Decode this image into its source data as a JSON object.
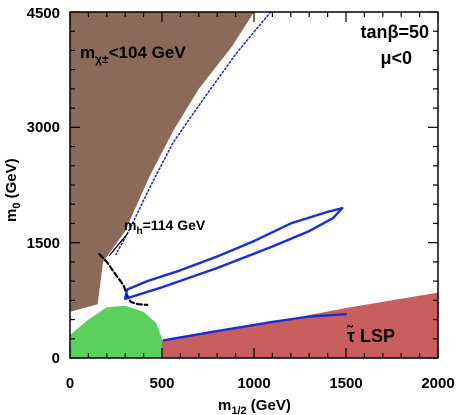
{
  "chart_data": {
    "type": "area",
    "xlabel": {
      "main": "m",
      "sub": "1/2",
      "unit": " (GeV)"
    },
    "ylabel": {
      "main": "m",
      "sub": "0",
      "unit": " (GeV)"
    },
    "xlim": [
      0,
      2000
    ],
    "ylim": [
      0,
      4500
    ],
    "xticks": [
      "0",
      "500",
      "1000",
      "1500",
      "2000"
    ],
    "yticks": [
      "0",
      "1500",
      "3000",
      "4500"
    ],
    "grid": false,
    "legend": "none",
    "params": {
      "line1": "tanβ=50",
      "line2": "μ<0"
    },
    "regions": [
      {
        "name": "chargino",
        "label": {
          "main": "m",
          "sub": "χ±",
          "rest": "<104 GeV"
        },
        "color": "#8b6a5a",
        "boundary": [
          [
            0,
            4500
          ],
          [
            1000,
            4500
          ],
          [
            880,
            4050
          ],
          [
            700,
            3500
          ],
          [
            560,
            2950
          ],
          [
            430,
            2350
          ],
          [
            300,
            1650
          ],
          [
            180,
            1250
          ],
          [
            150,
            700
          ],
          [
            0,
            600
          ]
        ]
      },
      {
        "name": "stau-lsp",
        "label": {
          "main": "τ̃",
          "rest": " LSP"
        },
        "color": "#c95e5e",
        "boundary": [
          [
            500,
            0
          ],
          [
            2000,
            0
          ],
          [
            2000,
            850
          ],
          [
            1500,
            650
          ],
          [
            1000,
            420
          ],
          [
            500,
            230
          ]
        ]
      },
      {
        "name": "bsgamma",
        "label": "",
        "color": "#5ad05a",
        "boundary": [
          [
            0,
            0
          ],
          [
            500,
            0
          ],
          [
            500,
            250
          ],
          [
            470,
            450
          ],
          [
            400,
            600
          ],
          [
            300,
            680
          ],
          [
            200,
            660
          ],
          [
            100,
            500
          ],
          [
            0,
            300
          ]
        ]
      }
    ],
    "contours": [
      {
        "name": "mh-114",
        "label": {
          "main": "m",
          "sub": "h",
          "rest": "=114 GeV"
        },
        "label_at": [
          300,
          1700
        ],
        "color": "#000000",
        "style": "dashed",
        "points": [
          [
            160,
            1350
          ],
          [
            200,
            1250
          ],
          [
            250,
            1080
          ],
          [
            290,
            950
          ],
          [
            310,
            820
          ],
          [
            330,
            730
          ],
          [
            370,
            700
          ],
          [
            420,
            690
          ]
        ]
      },
      {
        "name": "wmap-funnel",
        "color": "#1a2ed6",
        "style": "solid",
        "points": [
          [
            300,
            770
          ],
          [
            500,
            920
          ],
          [
            800,
            1170
          ],
          [
            1100,
            1450
          ],
          [
            1300,
            1650
          ],
          [
            1430,
            1820
          ],
          [
            1480,
            1950
          ],
          [
            1400,
            1900
          ],
          [
            1200,
            1750
          ],
          [
            1000,
            1520
          ],
          [
            800,
            1320
          ],
          [
            600,
            1140
          ],
          [
            420,
            1000
          ],
          [
            310,
            890
          ],
          [
            300,
            770
          ]
        ]
      },
      {
        "name": "wmap-coannihilation",
        "color": "#1a2ed6",
        "style": "solid",
        "points": [
          [
            510,
            230
          ],
          [
            800,
            350
          ],
          [
            1100,
            470
          ],
          [
            1300,
            540
          ],
          [
            1500,
            570
          ]
        ]
      },
      {
        "name": "wmap-focus-point",
        "color": "#1a2ed6",
        "style": "dotted",
        "points": [
          [
            1090,
            4500
          ],
          [
            900,
            3950
          ],
          [
            720,
            3350
          ],
          [
            560,
            2800
          ],
          [
            430,
            2200
          ],
          [
            330,
            1700
          ],
          [
            250,
            1350
          ]
        ]
      }
    ]
  }
}
